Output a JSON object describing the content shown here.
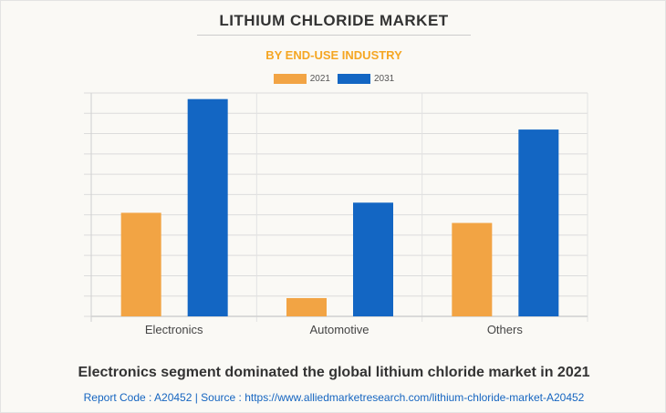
{
  "title": "LITHIUM CHLORIDE MARKET",
  "subtitle": "BY END-USE INDUSTRY",
  "headline": "Electronics segment dominated the global lithium chloride market in 2021",
  "source": "Report Code : A20452  |  Source : https://www.alliedmarketresearch.com/lithium-chloride-market-A20452",
  "colors": {
    "2021": "#f2a444",
    "2031": "#1366c3"
  },
  "chart_data": {
    "type": "bar",
    "title": "LITHIUM CHLORIDE MARKET",
    "subtitle": "BY END-USE INDUSTRY",
    "categories": [
      "Electronics",
      "Automotive",
      "Others"
    ],
    "series": [
      {
        "name": "2021",
        "values": [
          5.1,
          0.9,
          4.6
        ]
      },
      {
        "name": "2031",
        "values": [
          10.7,
          5.6,
          9.2
        ]
      }
    ],
    "xlabel": "",
    "ylabel": "",
    "ylim": [
      0,
      11
    ],
    "y_unit_note": "no axis values shown; values in gridline units",
    "grid": true,
    "legend": "top-center"
  }
}
